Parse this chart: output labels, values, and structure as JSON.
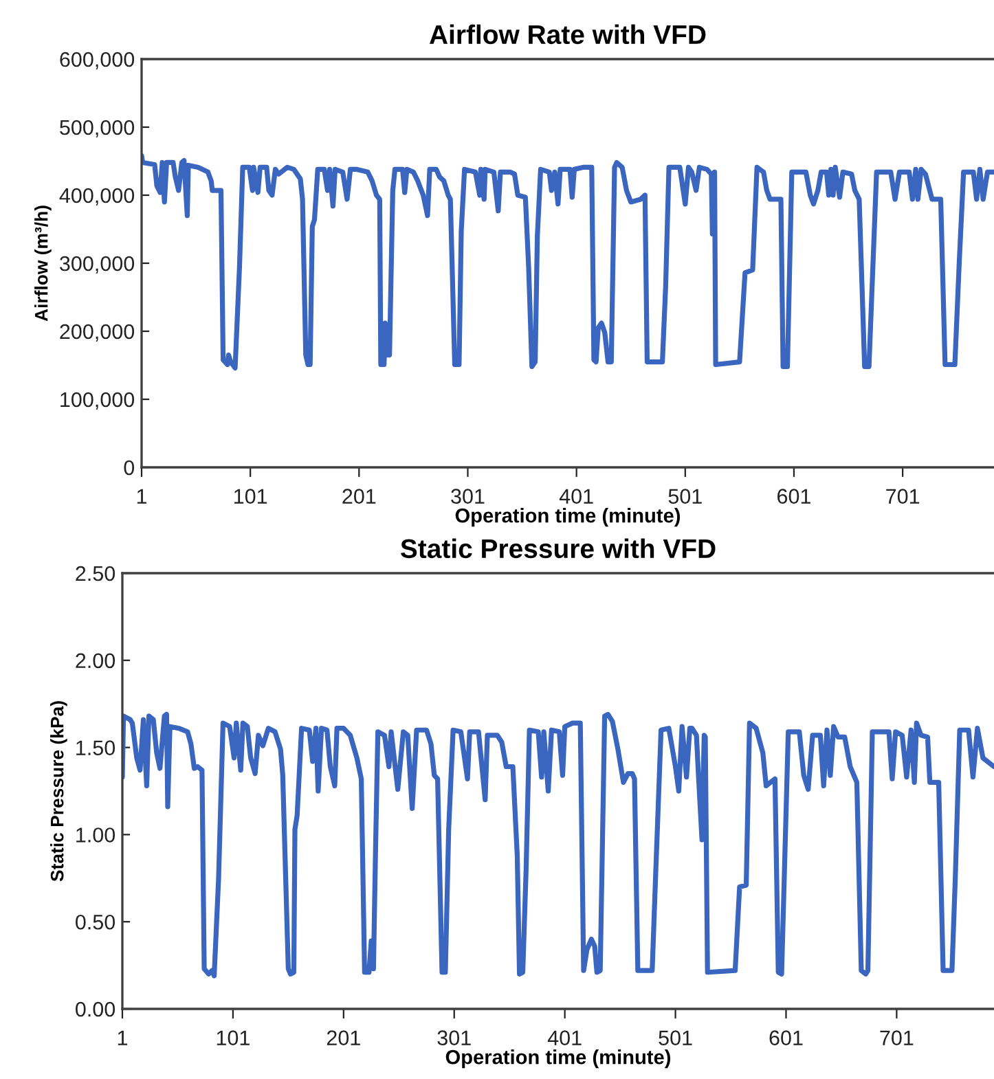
{
  "chart_data": [
    {
      "type": "line",
      "title": "Airflow Rate with VFD",
      "xlabel": "Operation time (minute)",
      "ylabel": "Airflow (m³/h)",
      "xlim": [
        1,
        785
      ],
      "xticks": [
        1,
        101,
        201,
        301,
        401,
        501,
        601,
        701
      ],
      "ylim": [
        0,
        600000
      ],
      "yticks": [
        {
          "value": 0,
          "label": "0"
        },
        {
          "value": 100000,
          "label": "100,000"
        },
        {
          "value": 200000,
          "label": "200,000"
        },
        {
          "value": 300000,
          "label": "300,000"
        },
        {
          "value": 400000,
          "label": "400,000"
        },
        {
          "value": 500000,
          "label": "500,000"
        },
        {
          "value": 600000,
          "label": "600,000"
        }
      ],
      "grid": false,
      "marker": "none",
      "line_style": "solid",
      "series": [
        {
          "color": "#3a66c0",
          "x": [
            1,
            2,
            13,
            15,
            18,
            20,
            22,
            24,
            30,
            32,
            35,
            38,
            40,
            43,
            44,
            53,
            62,
            65,
            66,
            74,
            76,
            80,
            81,
            83,
            87,
            91,
            94,
            100,
            103,
            104,
            108,
            110,
            116,
            118,
            121,
            124,
            127,
            135,
            141,
            147,
            149,
            152,
            154,
            156,
            158,
            160,
            163,
            169,
            172,
            174,
            177,
            179,
            186,
            190,
            193,
            199,
            209,
            213,
            217,
            220,
            221,
            224,
            225,
            227,
            228,
            229,
            232,
            234,
            241,
            243,
            245,
            251,
            255,
            260,
            264,
            266,
            272,
            275,
            279,
            283,
            285,
            289,
            293,
            295,
            298,
            308,
            312,
            313,
            316,
            317,
            325,
            329,
            331,
            340,
            344,
            347,
            354,
            357,
            360,
            363,
            365,
            368,
            376,
            378,
            381,
            384,
            386,
            395,
            397,
            399,
            407,
            415,
            417,
            419,
            421,
            424,
            427,
            430,
            433,
            436,
            438,
            443,
            447,
            451,
            460,
            464,
            466,
            480,
            483,
            486,
            496,
            501,
            504,
            507,
            511,
            514,
            521,
            525,
            526,
            528,
            529,
            551,
            556,
            563,
            567,
            573,
            576,
            579,
            589,
            591,
            595,
            599,
            612,
            616,
            619,
            623,
            626,
            631,
            633,
            635,
            637,
            639,
            643,
            646,
            654,
            657,
            661,
            666,
            670,
            677,
            690,
            694,
            698,
            707,
            710,
            713,
            715,
            718,
            722,
            728,
            736,
            740,
            749,
            753,
            757,
            766,
            769,
            772,
            775,
            779,
            785
          ],
          "values": [
            458000,
            448000,
            445000,
            414000,
            404000,
            448000,
            390000,
            448000,
            448000,
            427000,
            407000,
            448000,
            451000,
            370000,
            444000,
            441000,
            434000,
            421000,
            407000,
            407000,
            158000,
            151000,
            165000,
            155000,
            146000,
            293000,
            441000,
            441000,
            407000,
            441000,
            404000,
            441000,
            441000,
            407000,
            400000,
            438000,
            431000,
            441000,
            438000,
            424000,
            394000,
            165000,
            151000,
            151000,
            354000,
            364000,
            438000,
            438000,
            407000,
            438000,
            384000,
            438000,
            434000,
            394000,
            438000,
            438000,
            434000,
            421000,
            400000,
            394000,
            151000,
            151000,
            212000,
            165000,
            168000,
            165000,
            407000,
            438000,
            438000,
            404000,
            438000,
            434000,
            421000,
            400000,
            370000,
            438000,
            438000,
            427000,
            421000,
            400000,
            394000,
            151000,
            151000,
            347000,
            438000,
            434000,
            400000,
            438000,
            394000,
            438000,
            434000,
            377000,
            434000,
            434000,
            431000,
            400000,
            397000,
            293000,
            148000,
            155000,
            340000,
            438000,
            434000,
            407000,
            434000,
            387000,
            438000,
            438000,
            397000,
            438000,
            441000,
            441000,
            158000,
            155000,
            205000,
            212000,
            198000,
            155000,
            155000,
            441000,
            448000,
            441000,
            407000,
            390000,
            394000,
            400000,
            155000,
            155000,
            266000,
            441000,
            441000,
            387000,
            441000,
            434000,
            407000,
            441000,
            438000,
            431000,
            343000,
            434000,
            151000,
            155000,
            286000,
            290000,
            441000,
            434000,
            407000,
            394000,
            394000,
            148000,
            148000,
            434000,
            434000,
            400000,
            387000,
            407000,
            434000,
            434000,
            400000,
            438000,
            400000,
            441000,
            397000,
            434000,
            431000,
            407000,
            394000,
            148000,
            148000,
            434000,
            434000,
            394000,
            434000,
            434000,
            394000,
            438000,
            394000,
            438000,
            431000,
            394000,
            394000,
            151000,
            151000,
            300000,
            434000,
            434000,
            394000,
            438000,
            394000,
            434000,
            434000
          ]
        }
      ]
    },
    {
      "type": "line",
      "title": "Static Pressure with VFD",
      "xlabel": "Operation time (minute)",
      "ylabel": "Static Pressure (kPa)",
      "xlim": [
        1,
        789
      ],
      "xticks": [
        1,
        101,
        201,
        301,
        401,
        501,
        601,
        701
      ],
      "ylim": [
        0,
        2.5
      ],
      "yticks": [
        {
          "value": 0,
          "label": "0.00"
        },
        {
          "value": 0.5,
          "label": "0.50"
        },
        {
          "value": 1.0,
          "label": "1.00"
        },
        {
          "value": 1.5,
          "label": "1.50"
        },
        {
          "value": 2.0,
          "label": "2.00"
        },
        {
          "value": 2.5,
          "label": "2.50"
        }
      ],
      "grid": false,
      "marker": "none",
      "line_style": "solid",
      "series": [
        {
          "color": "#3a66c0",
          "x": [
            1,
            2,
            8,
            10,
            14,
            17,
            20,
            23,
            25,
            29,
            32,
            35,
            39,
            41,
            42,
            44,
            52,
            60,
            63,
            66,
            69,
            73,
            75,
            79,
            82,
            84,
            88,
            92,
            98,
            102,
            104,
            108,
            110,
            114,
            117,
            121,
            124,
            128,
            133,
            139,
            144,
            146,
            151,
            153,
            156,
            157,
            159,
            163,
            170,
            173,
            176,
            178,
            181,
            186,
            189,
            193,
            195,
            201,
            207,
            213,
            217,
            220,
            224,
            226,
            228,
            230,
            232,
            238,
            242,
            244,
            250,
            255,
            259,
            263,
            267,
            276,
            280,
            283,
            286,
            290,
            293,
            296,
            300,
            307,
            313,
            315,
            323,
            329,
            331,
            340,
            344,
            348,
            354,
            358,
            360,
            363,
            366,
            369,
            377,
            380,
            382,
            386,
            389,
            396,
            399,
            401,
            408,
            415,
            418,
            421,
            425,
            428,
            430,
            433,
            437,
            440,
            444,
            449,
            454,
            458,
            462,
            464,
            467,
            480,
            483,
            488,
            495,
            501,
            504,
            507,
            511,
            514,
            516,
            520,
            522,
            525,
            527,
            528,
            530,
            555,
            559,
            565,
            568,
            574,
            580,
            583,
            591,
            594,
            597,
            603,
            613,
            617,
            621,
            625,
            632,
            635,
            638,
            641,
            644,
            648,
            654,
            659,
            665,
            669,
            673,
            675,
            679,
            694,
            697,
            700,
            706,
            710,
            714,
            717,
            719,
            723,
            729,
            731,
            739,
            743,
            751,
            754,
            758,
            766,
            770,
            774,
            779,
            789
          ],
          "values": [
            1.33,
            1.68,
            1.66,
            1.64,
            1.44,
            1.37,
            1.66,
            1.28,
            1.68,
            1.66,
            1.47,
            1.38,
            1.68,
            1.69,
            1.16,
            1.62,
            1.61,
            1.59,
            1.52,
            1.38,
            1.39,
            1.37,
            0.23,
            0.2,
            0.22,
            0.19,
            0.75,
            1.64,
            1.62,
            1.44,
            1.64,
            1.37,
            1.64,
            1.62,
            1.44,
            1.35,
            1.57,
            1.51,
            1.61,
            1.59,
            1.49,
            1.34,
            0.23,
            0.2,
            0.21,
            1.03,
            1.11,
            1.61,
            1.6,
            1.42,
            1.61,
            1.25,
            1.61,
            1.6,
            1.39,
            1.28,
            1.61,
            1.61,
            1.57,
            1.44,
            1.32,
            0.21,
            0.21,
            0.39,
            0.23,
            0.95,
            1.59,
            1.57,
            1.39,
            1.59,
            1.26,
            1.59,
            1.57,
            1.15,
            1.6,
            1.6,
            1.52,
            1.34,
            1.32,
            0.21,
            0.21,
            1.03,
            1.6,
            1.59,
            1.32,
            1.59,
            1.59,
            1.2,
            1.57,
            1.57,
            1.53,
            1.39,
            1.39,
            0.88,
            0.2,
            0.21,
            0.8,
            1.6,
            1.59,
            1.33,
            1.59,
            1.25,
            1.6,
            1.59,
            1.34,
            1.62,
            1.64,
            1.64,
            0.22,
            0.34,
            0.4,
            0.36,
            0.21,
            0.22,
            1.68,
            1.69,
            1.65,
            1.49,
            1.3,
            1.35,
            1.35,
            1.32,
            0.22,
            0.22,
            0.75,
            1.6,
            1.61,
            1.39,
            1.25,
            1.62,
            1.33,
            1.61,
            1.61,
            1.57,
            1.32,
            0.97,
            1.57,
            1.56,
            0.21,
            0.22,
            0.7,
            0.71,
            1.64,
            1.61,
            1.47,
            1.28,
            1.32,
            0.21,
            0.2,
            1.59,
            1.59,
            1.34,
            1.26,
            1.57,
            1.57,
            1.28,
            1.6,
            1.34,
            1.62,
            1.56,
            1.56,
            1.39,
            1.3,
            0.22,
            0.2,
            0.22,
            1.59,
            1.59,
            1.32,
            1.59,
            1.57,
            1.33,
            1.6,
            1.3,
            1.64,
            1.57,
            1.56,
            1.3,
            1.3,
            0.22,
            0.22,
            0.75,
            1.6,
            1.6,
            1.33,
            1.61,
            1.44,
            1.39
          ]
        }
      ]
    }
  ]
}
